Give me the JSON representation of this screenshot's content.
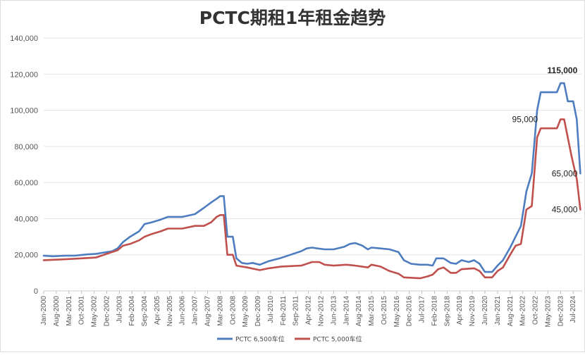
{
  "chart_data": {
    "type": "line",
    "title": "PCTC期租1年租金趋势",
    "xlabel": "",
    "ylabel": "",
    "ylim": [
      0,
      140000
    ],
    "yticks": [
      "0",
      "20,000",
      "40,000",
      "60,000",
      "80,000",
      "100,000",
      "120,000",
      "140,000"
    ],
    "ytick_values": [
      0,
      20000,
      40000,
      60000,
      80000,
      100000,
      120000,
      140000
    ],
    "xlim": [
      "2000-01",
      "2024-12"
    ],
    "x_ticks": [
      {
        "label": "Jan-2000",
        "date": "2000-01"
      },
      {
        "label": "Aug-2000",
        "date": "2000-08"
      },
      {
        "label": "Mar-2001",
        "date": "2001-03"
      },
      {
        "label": "Oct-2001",
        "date": "2001-10"
      },
      {
        "label": "May-2002",
        "date": "2002-05"
      },
      {
        "label": "Dec-2002",
        "date": "2002-12"
      },
      {
        "label": "Jul-2003",
        "date": "2003-07"
      },
      {
        "label": "Feb-2004",
        "date": "2004-02"
      },
      {
        "label": "Sep-2004",
        "date": "2004-09"
      },
      {
        "label": "Apr-2005",
        "date": "2005-04"
      },
      {
        "label": "Nov-2005",
        "date": "2005-11"
      },
      {
        "label": "Jun-2006",
        "date": "2006-06"
      },
      {
        "label": "Jan-2007",
        "date": "2007-01"
      },
      {
        "label": "Aug-2007",
        "date": "2007-08"
      },
      {
        "label": "Mar-2008",
        "date": "2008-03"
      },
      {
        "label": "Oct-2008",
        "date": "2008-10"
      },
      {
        "label": "May-2009",
        "date": "2009-05"
      },
      {
        "label": "Dec-2009",
        "date": "2009-12"
      },
      {
        "label": "Jul-2010",
        "date": "2010-07"
      },
      {
        "label": "Feb-2011",
        "date": "2011-02"
      },
      {
        "label": "Sep-2011",
        "date": "2011-09"
      },
      {
        "label": "Apr-2012",
        "date": "2012-04"
      },
      {
        "label": "Nov-2012",
        "date": "2012-11"
      },
      {
        "label": "Jun-2013",
        "date": "2013-06"
      },
      {
        "label": "Jan-2014",
        "date": "2014-01"
      },
      {
        "label": "Aug-2014",
        "date": "2014-08"
      },
      {
        "label": "Mar-2015",
        "date": "2015-03"
      },
      {
        "label": "Oct-2015",
        "date": "2015-10"
      },
      {
        "label": "May-2016",
        "date": "2016-05"
      },
      {
        "label": "Dec-2016",
        "date": "2016-12"
      },
      {
        "label": "Jul-2017",
        "date": "2017-07"
      },
      {
        "label": "Feb-2018",
        "date": "2018-02"
      },
      {
        "label": "Sep-2018",
        "date": "2018-09"
      },
      {
        "label": "Apr-2019",
        "date": "2019-04"
      },
      {
        "label": "Nov-2019",
        "date": "2019-11"
      },
      {
        "label": "Jun-2020",
        "date": "2020-06"
      },
      {
        "label": "Jan-2021",
        "date": "2021-01"
      },
      {
        "label": "Aug-2021",
        "date": "2021-08"
      },
      {
        "label": "Mar-2022",
        "date": "2022-03"
      },
      {
        "label": "Oct-2022",
        "date": "2022-10"
      },
      {
        "label": "May-2023",
        "date": "2023-05"
      },
      {
        "label": "Dec-2023",
        "date": "2023-12"
      },
      {
        "label": "Jul-2024",
        "date": "2024-07"
      }
    ],
    "grid": true,
    "legend_position": "bottom",
    "series": [
      {
        "name": "PCTC 6,500车位",
        "color": "#4e7dbf",
        "points": [
          [
            "2000-01",
            19500
          ],
          [
            "2000-06",
            19200
          ],
          [
            "2001-01",
            19500
          ],
          [
            "2001-06",
            19500
          ],
          [
            "2002-01",
            20200
          ],
          [
            "2002-06",
            20500
          ],
          [
            "2002-12",
            21500
          ],
          [
            "2003-03",
            22000
          ],
          [
            "2003-06",
            23500
          ],
          [
            "2003-09",
            27000
          ],
          [
            "2004-01",
            30000
          ],
          [
            "2004-06",
            33000
          ],
          [
            "2004-09",
            37000
          ],
          [
            "2005-01",
            38000
          ],
          [
            "2005-06",
            39500
          ],
          [
            "2005-10",
            41000
          ],
          [
            "2006-06",
            41000
          ],
          [
            "2007-01",
            42500
          ],
          [
            "2007-06",
            46000
          ],
          [
            "2007-10",
            49000
          ],
          [
            "2008-01",
            51000
          ],
          [
            "2008-03",
            52500
          ],
          [
            "2008-05",
            52500
          ],
          [
            "2008-07",
            30000
          ],
          [
            "2008-10",
            30000
          ],
          [
            "2008-12",
            18000
          ],
          [
            "2009-03",
            15500
          ],
          [
            "2009-06",
            15000
          ],
          [
            "2009-09",
            15500
          ],
          [
            "2010-01",
            14500
          ],
          [
            "2010-06",
            16500
          ],
          [
            "2010-12",
            18000
          ],
          [
            "2011-06",
            20000
          ],
          [
            "2011-12",
            22000
          ],
          [
            "2012-03",
            23500
          ],
          [
            "2012-06",
            24000
          ],
          [
            "2012-09",
            23500
          ],
          [
            "2013-01",
            23000
          ],
          [
            "2013-06",
            23000
          ],
          [
            "2013-12",
            24500
          ],
          [
            "2014-03",
            26000
          ],
          [
            "2014-06",
            26500
          ],
          [
            "2014-10",
            25000
          ],
          [
            "2015-01",
            23000
          ],
          [
            "2015-03",
            24000
          ],
          [
            "2015-08",
            23500
          ],
          [
            "2016-01",
            23000
          ],
          [
            "2016-06",
            21500
          ],
          [
            "2016-09",
            17000
          ],
          [
            "2017-01",
            15000
          ],
          [
            "2017-06",
            14500
          ],
          [
            "2017-10",
            14500
          ],
          [
            "2018-01",
            14000
          ],
          [
            "2018-03",
            18000
          ],
          [
            "2018-07",
            18000
          ],
          [
            "2018-11",
            15500
          ],
          [
            "2019-02",
            15000
          ],
          [
            "2019-05",
            17000
          ],
          [
            "2019-09",
            16000
          ],
          [
            "2019-12",
            17000
          ],
          [
            "2020-03",
            15000
          ],
          [
            "2020-06",
            10500
          ],
          [
            "2020-10",
            10500
          ],
          [
            "2021-01",
            14000
          ],
          [
            "2021-04",
            17000
          ],
          [
            "2021-08",
            24000
          ],
          [
            "2021-11",
            30000
          ],
          [
            "2022-02",
            36000
          ],
          [
            "2022-05",
            55000
          ],
          [
            "2022-08",
            65000
          ],
          [
            "2022-11",
            100000
          ],
          [
            "2023-01",
            110000
          ],
          [
            "2023-03",
            110000
          ],
          [
            "2023-10",
            110000
          ],
          [
            "2023-12",
            115000
          ],
          [
            "2024-02",
            115000
          ],
          [
            "2024-04",
            105000
          ],
          [
            "2024-07",
            105000
          ],
          [
            "2024-09",
            95000
          ],
          [
            "2024-11",
            65000
          ]
        ]
      },
      {
        "name": "PCTC 5,000车位",
        "color": "#c0504d",
        "points": [
          [
            "2000-01",
            17000
          ],
          [
            "2001-01",
            17500
          ],
          [
            "2001-10",
            18000
          ],
          [
            "2002-06",
            18500
          ],
          [
            "2002-12",
            20500
          ],
          [
            "2003-06",
            22500
          ],
          [
            "2003-09",
            25000
          ],
          [
            "2004-01",
            26000
          ],
          [
            "2004-06",
            28000
          ],
          [
            "2004-09",
            30000
          ],
          [
            "2005-01",
            31500
          ],
          [
            "2005-06",
            33000
          ],
          [
            "2005-10",
            34500
          ],
          [
            "2006-06",
            34500
          ],
          [
            "2007-01",
            36000
          ],
          [
            "2007-06",
            36000
          ],
          [
            "2007-10",
            38000
          ],
          [
            "2008-01",
            41000
          ],
          [
            "2008-03",
            42000
          ],
          [
            "2008-05",
            42000
          ],
          [
            "2008-07",
            20000
          ],
          [
            "2008-10",
            20000
          ],
          [
            "2008-12",
            14000
          ],
          [
            "2009-06",
            13000
          ],
          [
            "2010-01",
            11500
          ],
          [
            "2010-06",
            12500
          ],
          [
            "2011-01",
            13500
          ],
          [
            "2011-12",
            14000
          ],
          [
            "2012-06",
            16000
          ],
          [
            "2012-10",
            16000
          ],
          [
            "2013-01",
            14500
          ],
          [
            "2013-06",
            14000
          ],
          [
            "2014-01",
            14500
          ],
          [
            "2014-06",
            14000
          ],
          [
            "2015-01",
            13000
          ],
          [
            "2015-03",
            14500
          ],
          [
            "2015-08",
            13500
          ],
          [
            "2016-01",
            11000
          ],
          [
            "2016-06",
            9500
          ],
          [
            "2016-09",
            7500
          ],
          [
            "2017-06",
            7000
          ],
          [
            "2017-10",
            8000
          ],
          [
            "2018-01",
            9000
          ],
          [
            "2018-04",
            12000
          ],
          [
            "2018-07",
            13000
          ],
          [
            "2018-11",
            10000
          ],
          [
            "2019-02",
            10000
          ],
          [
            "2019-05",
            12000
          ],
          [
            "2019-12",
            12500
          ],
          [
            "2020-03",
            11000
          ],
          [
            "2020-06",
            7500
          ],
          [
            "2020-10",
            7500
          ],
          [
            "2021-01",
            11000
          ],
          [
            "2021-04",
            13000
          ],
          [
            "2021-08",
            20000
          ],
          [
            "2021-11",
            25000
          ],
          [
            "2022-02",
            26000
          ],
          [
            "2022-05",
            45000
          ],
          [
            "2022-08",
            47000
          ],
          [
            "2022-11",
            85000
          ],
          [
            "2023-01",
            90000
          ],
          [
            "2023-10",
            90000
          ],
          [
            "2023-12",
            95000
          ],
          [
            "2024-02",
            95000
          ],
          [
            "2024-06",
            75000
          ],
          [
            "2024-09",
            62000
          ],
          [
            "2024-11",
            45000
          ]
        ]
      }
    ],
    "annotations": [
      {
        "text": "115,000",
        "date": "2024-01",
        "value": 115000,
        "bold": true,
        "anchor": "middle",
        "dy": -14
      },
      {
        "text": "95,000",
        "date": "2023-01",
        "value": 95000,
        "bold": false,
        "anchor": "end",
        "dy": 4
      },
      {
        "text": "65,000",
        "date": "2024-11",
        "value": 65000,
        "bold": false,
        "anchor": "end",
        "dy": 4
      },
      {
        "text": "45,000",
        "date": "2024-11",
        "value": 45000,
        "bold": false,
        "anchor": "end",
        "dy": 4
      }
    ]
  }
}
